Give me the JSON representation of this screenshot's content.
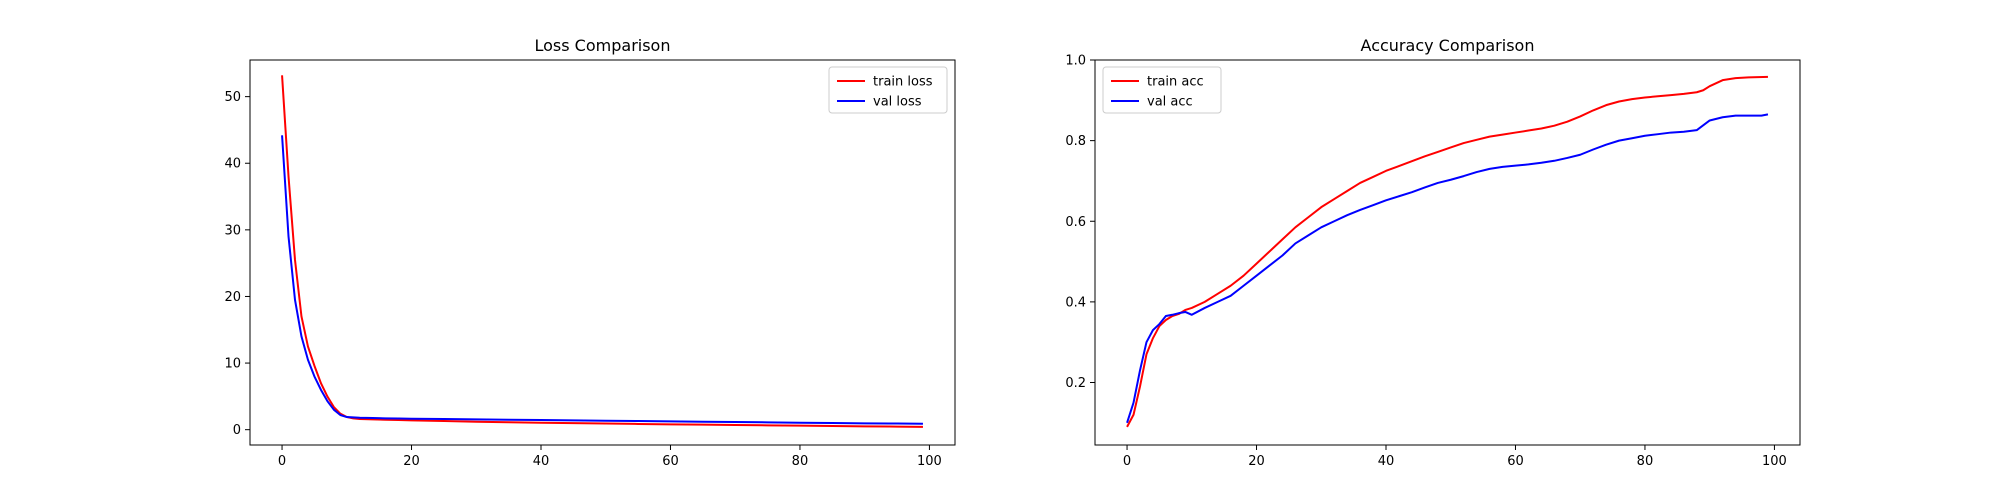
{
  "chart_data": [
    {
      "type": "line",
      "title": "Loss Comparison",
      "xlabel": "",
      "ylabel": "",
      "xlim": [
        -4.95,
        103.95
      ],
      "ylim": [
        -2.3,
        55.5
      ],
      "xticks": [
        0,
        20,
        40,
        60,
        80,
        100
      ],
      "yticks": [
        0,
        10,
        20,
        30,
        40,
        50
      ],
      "grid": false,
      "legend_position": "upper right",
      "series": [
        {
          "name": "train loss",
          "color": "#ff0000",
          "x": [
            0,
            1,
            2,
            3,
            4,
            5,
            6,
            7,
            8,
            9,
            10,
            11,
            12,
            14,
            16,
            18,
            20,
            25,
            30,
            35,
            40,
            45,
            50,
            55,
            60,
            65,
            70,
            75,
            80,
            85,
            90,
            95,
            99
          ],
          "y": [
            53.2,
            38.0,
            25.5,
            17.0,
            12.5,
            9.6,
            7.0,
            5.0,
            3.4,
            2.4,
            1.9,
            1.7,
            1.6,
            1.55,
            1.5,
            1.45,
            1.4,
            1.3,
            1.2,
            1.12,
            1.05,
            0.98,
            0.92,
            0.86,
            0.8,
            0.75,
            0.7,
            0.65,
            0.6,
            0.55,
            0.5,
            0.46,
            0.42
          ]
        },
        {
          "name": "val loss",
          "color": "#0000ff",
          "x": [
            0,
            1,
            2,
            3,
            4,
            5,
            6,
            7,
            8,
            9,
            10,
            11,
            12,
            14,
            16,
            18,
            20,
            25,
            30,
            35,
            40,
            45,
            50,
            55,
            60,
            65,
            70,
            75,
            80,
            85,
            90,
            95,
            99
          ],
          "y": [
            44.2,
            29.0,
            19.5,
            14.0,
            10.5,
            8.0,
            6.0,
            4.3,
            3.0,
            2.2,
            1.9,
            1.85,
            1.8,
            1.75,
            1.7,
            1.68,
            1.65,
            1.6,
            1.55,
            1.5,
            1.45,
            1.4,
            1.35,
            1.3,
            1.25,
            1.2,
            1.15,
            1.1,
            1.05,
            1.0,
            0.95,
            0.92,
            0.9
          ]
        }
      ]
    },
    {
      "type": "line",
      "title": "Accuracy Comparison",
      "xlabel": "",
      "ylabel": "",
      "xlim": [
        -4.95,
        103.95
      ],
      "ylim": [
        0.045,
        1.0
      ],
      "xticks": [
        0,
        20,
        40,
        60,
        80,
        100
      ],
      "yticks": [
        0.2,
        0.4,
        0.6,
        0.8,
        1.0
      ],
      "ytick_labels": [
        "0.2",
        "0.4",
        "0.6",
        "0.8",
        "1.0"
      ],
      "grid": false,
      "legend_position": "upper left",
      "series": [
        {
          "name": "train acc",
          "color": "#ff0000",
          "x": [
            0,
            1,
            2,
            3,
            4,
            5,
            6,
            7,
            8,
            9,
            10,
            12,
            14,
            16,
            18,
            20,
            22,
            24,
            26,
            28,
            30,
            32,
            34,
            36,
            38,
            40,
            42,
            44,
            46,
            48,
            50,
            52,
            54,
            56,
            58,
            60,
            62,
            64,
            66,
            68,
            70,
            72,
            74,
            76,
            78,
            80,
            82,
            84,
            86,
            88,
            89,
            90,
            92,
            94,
            96,
            99
          ],
          "y": [
            0.09,
            0.12,
            0.19,
            0.27,
            0.31,
            0.34,
            0.355,
            0.365,
            0.37,
            0.38,
            0.385,
            0.4,
            0.42,
            0.44,
            0.465,
            0.495,
            0.525,
            0.555,
            0.585,
            0.61,
            0.635,
            0.655,
            0.675,
            0.695,
            0.71,
            0.725,
            0.737,
            0.749,
            0.761,
            0.772,
            0.783,
            0.794,
            0.802,
            0.81,
            0.815,
            0.82,
            0.825,
            0.83,
            0.837,
            0.847,
            0.86,
            0.875,
            0.888,
            0.897,
            0.903,
            0.907,
            0.91,
            0.913,
            0.916,
            0.92,
            0.925,
            0.935,
            0.95,
            0.955,
            0.957,
            0.958
          ]
        },
        {
          "name": "val acc",
          "color": "#0000ff",
          "x": [
            0,
            1,
            2,
            3,
            4,
            5,
            6,
            7,
            8,
            9,
            10,
            12,
            14,
            16,
            18,
            20,
            22,
            24,
            26,
            28,
            30,
            32,
            34,
            36,
            38,
            40,
            42,
            44,
            46,
            48,
            50,
            52,
            54,
            56,
            58,
            60,
            62,
            64,
            66,
            68,
            70,
            72,
            74,
            76,
            78,
            80,
            82,
            84,
            86,
            88,
            90,
            92,
            94,
            96,
            98,
            99
          ],
          "y": [
            0.1,
            0.15,
            0.23,
            0.3,
            0.33,
            0.345,
            0.365,
            0.368,
            0.372,
            0.375,
            0.368,
            0.385,
            0.4,
            0.415,
            0.44,
            0.465,
            0.49,
            0.515,
            0.545,
            0.565,
            0.585,
            0.6,
            0.615,
            0.628,
            0.64,
            0.652,
            0.662,
            0.672,
            0.684,
            0.695,
            0.703,
            0.712,
            0.722,
            0.73,
            0.735,
            0.738,
            0.741,
            0.745,
            0.75,
            0.757,
            0.765,
            0.778,
            0.79,
            0.8,
            0.806,
            0.812,
            0.816,
            0.82,
            0.822,
            0.826,
            0.85,
            0.858,
            0.862,
            0.862,
            0.862,
            0.865
          ]
        }
      ]
    }
  ]
}
